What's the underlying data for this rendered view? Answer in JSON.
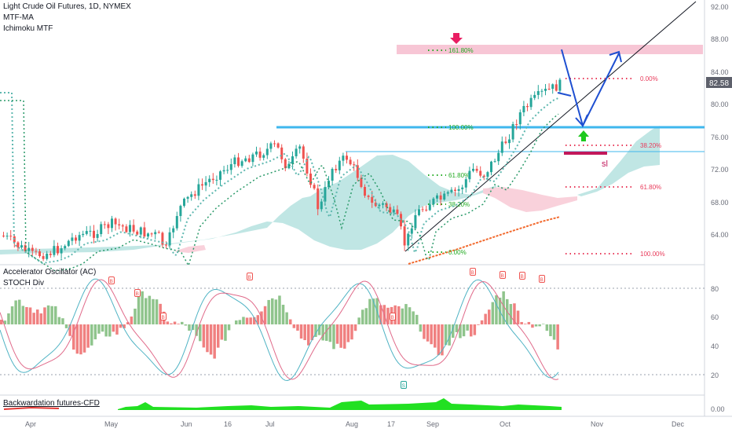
{
  "legends": {
    "title": "Light Crude Oil Futures, 1D, NYMEX",
    "mtf_ma": "MTF-MA",
    "ichimoku": "Ichimoku MTF",
    "ac": "Accelerator Oscillator (AC)",
    "stoch": "STOCH Div",
    "backwardation": "Backwardation futures-CFD"
  },
  "price_ticks": [
    "92.00",
    "88.00",
    "84.00",
    "80.00",
    "76.00",
    "72.00",
    "68.00",
    "64.00"
  ],
  "osc_ticks": [
    "80",
    "60",
    "40",
    "20"
  ],
  "bw_tick": "0.00",
  "last_price": "82.58",
  "months": [
    "Apr",
    "May",
    "Jun",
    "16",
    "Jul",
    "Aug",
    "17",
    "Sep",
    "Oct",
    "Nov",
    "Dec"
  ],
  "fib_levels": [
    "161.80%",
    "100.00%",
    "61.80%",
    "38.20%",
    "0.00%",
    "0.00%",
    "38.20%",
    "61.80%",
    "100.00%"
  ],
  "sl_label": "sl",
  "markers": [
    "B",
    "B",
    "B",
    "B",
    "B",
    "B",
    "B",
    "B",
    "B",
    "S"
  ],
  "colors": {
    "up": "#26a69a",
    "down": "#ef5350",
    "fib_green": "#22aa22",
    "fib_red": "#e83a5a",
    "hline": "#3fb7ee",
    "arrow": "#1e4fd1",
    "pink_zone": "#f7c6d5"
  },
  "chart_data": {
    "type": "candlestick",
    "x": [
      "Apr",
      "May",
      "Jun",
      "Jul",
      "Aug",
      "Sep",
      "Oct"
    ],
    "y_range": [
      60,
      93
    ],
    "approx_close": [
      62.5,
      65.5,
      70.5,
      74.0,
      71.0,
      66.5,
      73.0,
      82.6
    ],
    "drawn_levels": [
      77.0,
      74.5,
      87.0
    ]
  }
}
